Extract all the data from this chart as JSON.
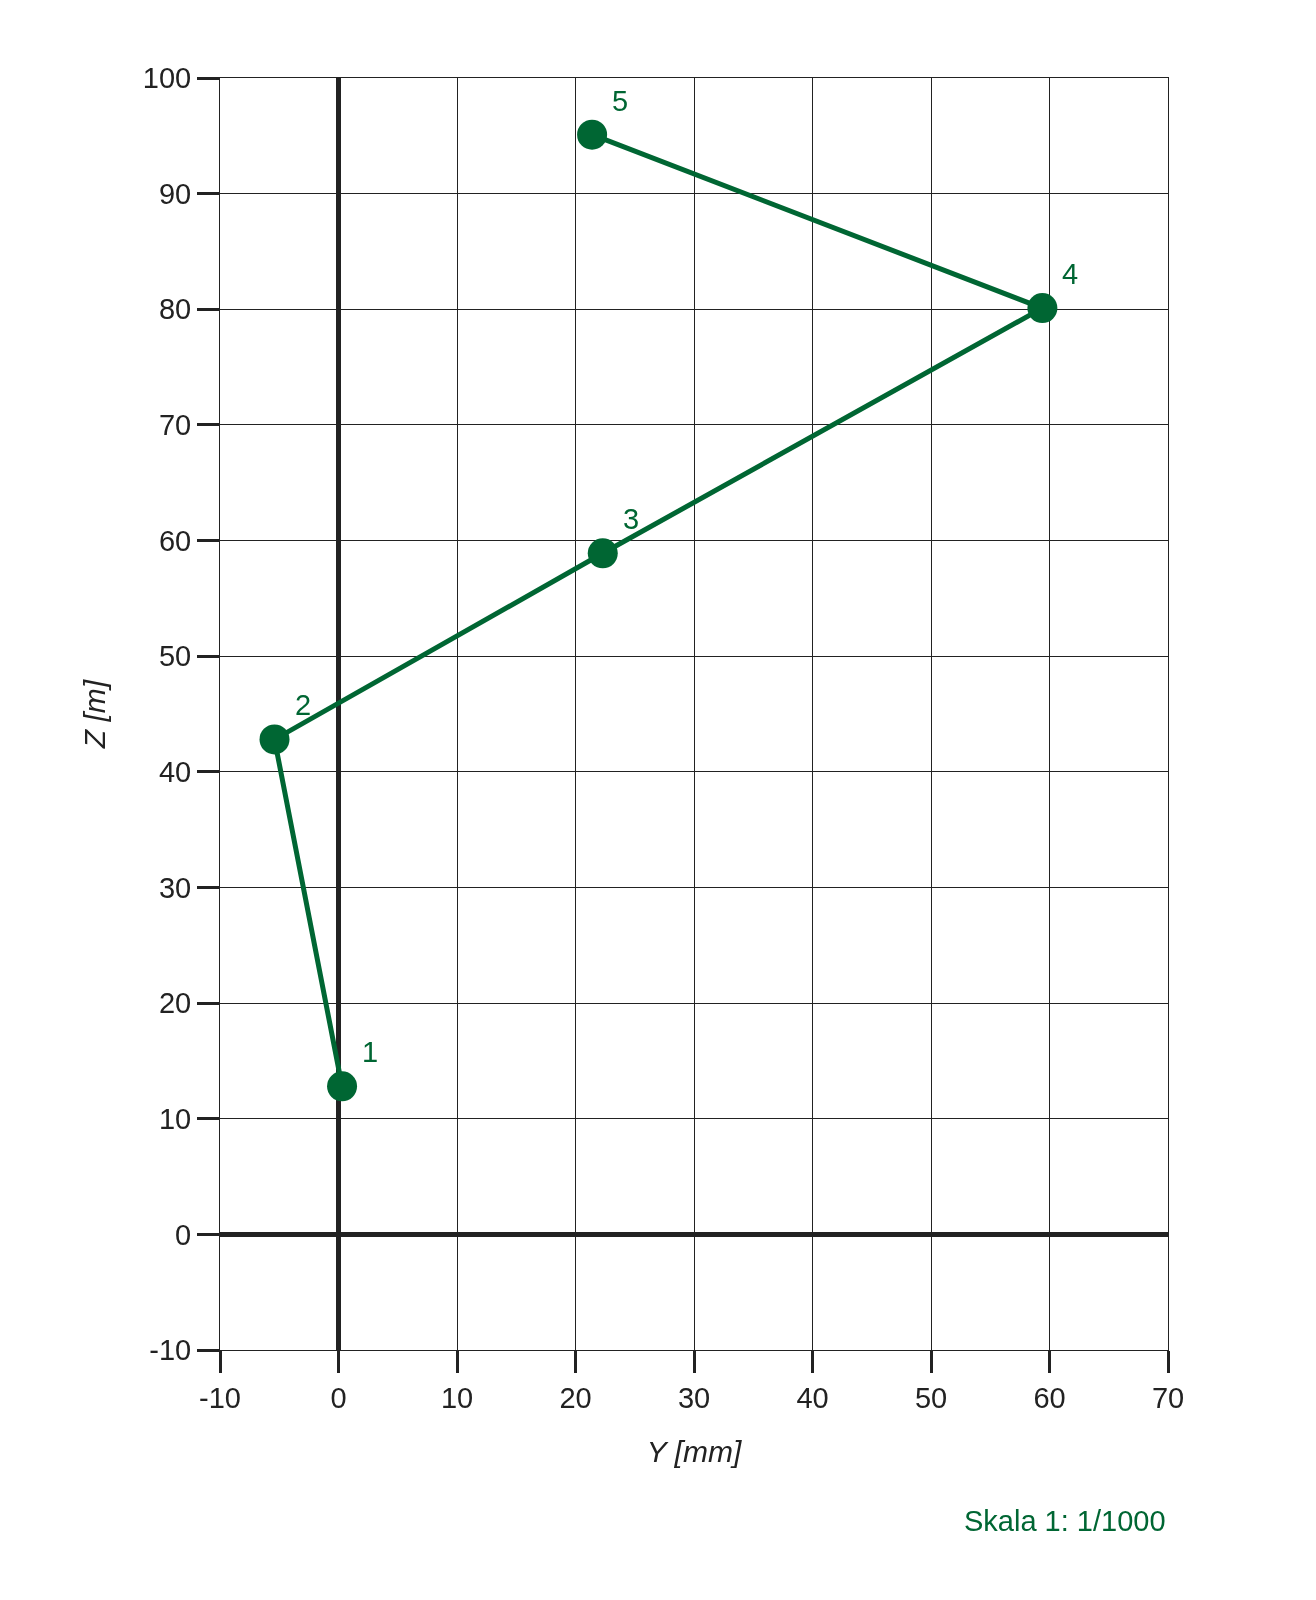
{
  "chart_data": {
    "type": "line",
    "xlabel": "Y [mm]",
    "ylabel": "Z [m]",
    "x": [
      0.3,
      -5.4,
      22.3,
      59.4,
      21.4
    ],
    "series": [
      {
        "color": "#006633",
        "values": [
          12.8,
          42.8,
          58.9,
          80.1,
          95.1
        ]
      }
    ],
    "xlim": [
      -10,
      70
    ],
    "xticks": [
      -10,
      0,
      10,
      20,
      30,
      40,
      50,
      60,
      70
    ],
    "ylim": [
      -10,
      100
    ],
    "yticks": [
      -10,
      0,
      10,
      20,
      30,
      40,
      50,
      60,
      70,
      80,
      90,
      100
    ],
    "grid": true,
    "marker": "circle",
    "line_style": "solid",
    "annotations": [
      {
        "text": "1",
        "x": 0.3,
        "y": 12.8
      },
      {
        "text": "2",
        "x": -5.4,
        "y": 42.8
      },
      {
        "text": "3",
        "x": 22.3,
        "y": 58.9
      },
      {
        "text": "4",
        "x": 59.4,
        "y": 80.1
      },
      {
        "text": "5",
        "x": 21.4,
        "y": 95.1
      },
      "Skala 1: 1/1000"
    ]
  }
}
